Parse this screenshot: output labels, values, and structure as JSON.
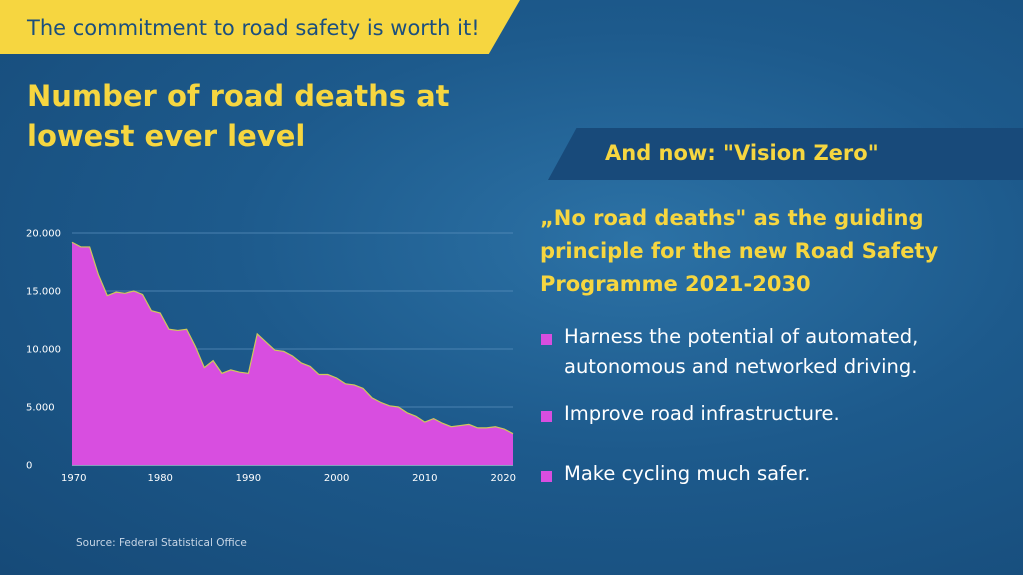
{
  "banner": {
    "text": "The commitment to road safety is worth it!"
  },
  "headline": "Number of road deaths at lowest ever level",
  "source": "Source: Federal Statistical Office",
  "vision_zero": "And now: \"Vision Zero\"",
  "principle": "„No road deaths\" as the guiding principle for the new Road Safety Programme 2021-2030",
  "bullets": [
    "Harness the potential of automated, autonomous and networked driving.",
    "Improve road infrastructure.",
    "Make cycling much safer."
  ],
  "colors": {
    "accent_yellow": "#f6d640",
    "area_fill": "#d84ee0",
    "area_stroke": "#cfc95a",
    "background": "#1d5a8c"
  },
  "chart_data": {
    "type": "area",
    "title": "",
    "xlabel": "",
    "ylabel": "",
    "x_ticks": [
      "1970",
      "1980",
      "1990",
      "2000",
      "2010",
      "2020"
    ],
    "y_ticks": [
      "0",
      "5.000",
      "10.000",
      "15.000",
      "20.000"
    ],
    "xlim": [
      1970,
      2020
    ],
    "ylim": [
      0,
      20000
    ],
    "grid": true,
    "x": [
      1970,
      1971,
      1972,
      1973,
      1974,
      1975,
      1976,
      1977,
      1978,
      1979,
      1980,
      1981,
      1982,
      1983,
      1984,
      1985,
      1986,
      1987,
      1988,
      1989,
      1990,
      1991,
      1992,
      1993,
      1994,
      1995,
      1996,
      1997,
      1998,
      1999,
      2000,
      2001,
      2002,
      2003,
      2004,
      2005,
      2006,
      2007,
      2008,
      2009,
      2010,
      2011,
      2012,
      2013,
      2014,
      2015,
      2016,
      2017,
      2018,
      2019,
      2020
    ],
    "values": [
      19200,
      18800,
      18800,
      16400,
      14600,
      14900,
      14800,
      15000,
      14700,
      13300,
      13100,
      11700,
      11600,
      11700,
      10200,
      8400,
      9000,
      7900,
      8200,
      8000,
      7900,
      11300,
      10600,
      9900,
      9800,
      9400,
      8800,
      8500,
      7800,
      7800,
      7500,
      7000,
      6900,
      6600,
      5800,
      5400,
      5100,
      5000,
      4500,
      4200,
      3700,
      4000,
      3600,
      3300,
      3400,
      3500,
      3200,
      3200,
      3300,
      3100,
      2700
    ],
    "series": [
      {
        "name": "",
        "values": "see values"
      }
    ]
  }
}
